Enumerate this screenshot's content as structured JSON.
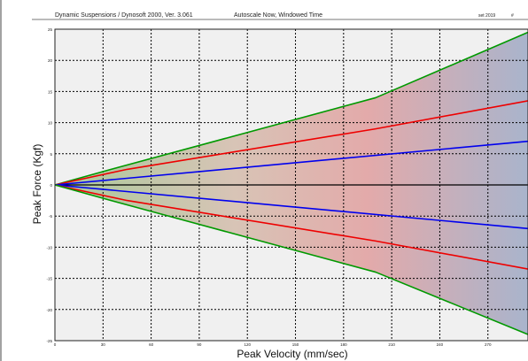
{
  "header": {
    "program": "Dynamic Suspensions / Dynosoft 2000, Ver. 3.061",
    "mode": "Autoscale Now, Windowed Time",
    "date": "set 2019",
    "hash": "#"
  },
  "chart_data": {
    "type": "line",
    "xlabel": "Peak Velocity (mm/sec)",
    "ylabel": "Peak Force (Kgf)",
    "xlim": [
      0,
      295
    ],
    "ylim": [
      -25,
      25
    ],
    "x_ticks": [
      0,
      30,
      60,
      90,
      120,
      150,
      180,
      210,
      240,
      270
    ],
    "y_ticks": [
      25,
      20,
      15,
      10,
      5,
      0,
      -5,
      -10,
      -15,
      -20,
      -25
    ],
    "grid": true,
    "series": [
      {
        "color": "#009900",
        "x": [
          0,
          35,
          200,
          295
        ],
        "y": [
          0,
          2.5,
          14,
          24.5
        ]
      },
      {
        "color": "#ee0000",
        "x": [
          0,
          45,
          200,
          295
        ],
        "y": [
          0,
          2.5,
          9,
          13.5
        ]
      },
      {
        "color": "#0000ee",
        "x": [
          0,
          295
        ],
        "y": [
          0,
          7
        ]
      },
      {
        "color": "#0000ee",
        "x": [
          0,
          295
        ],
        "y": [
          0,
          -7
        ]
      },
      {
        "color": "#ee0000",
        "x": [
          0,
          45,
          200,
          295
        ],
        "y": [
          0,
          -2.5,
          -9,
          -13.5
        ]
      },
      {
        "color": "#009900",
        "x": [
          0,
          35,
          200,
          295
        ],
        "y": [
          0,
          -2.5,
          -14,
          -24
        ]
      }
    ],
    "colors": {
      "plot_bg": "#f0f0f0",
      "fill_green": "#a9c99a",
      "fill_red": "#e3aaaa",
      "fill_blue": "#a9b4cc"
    }
  }
}
